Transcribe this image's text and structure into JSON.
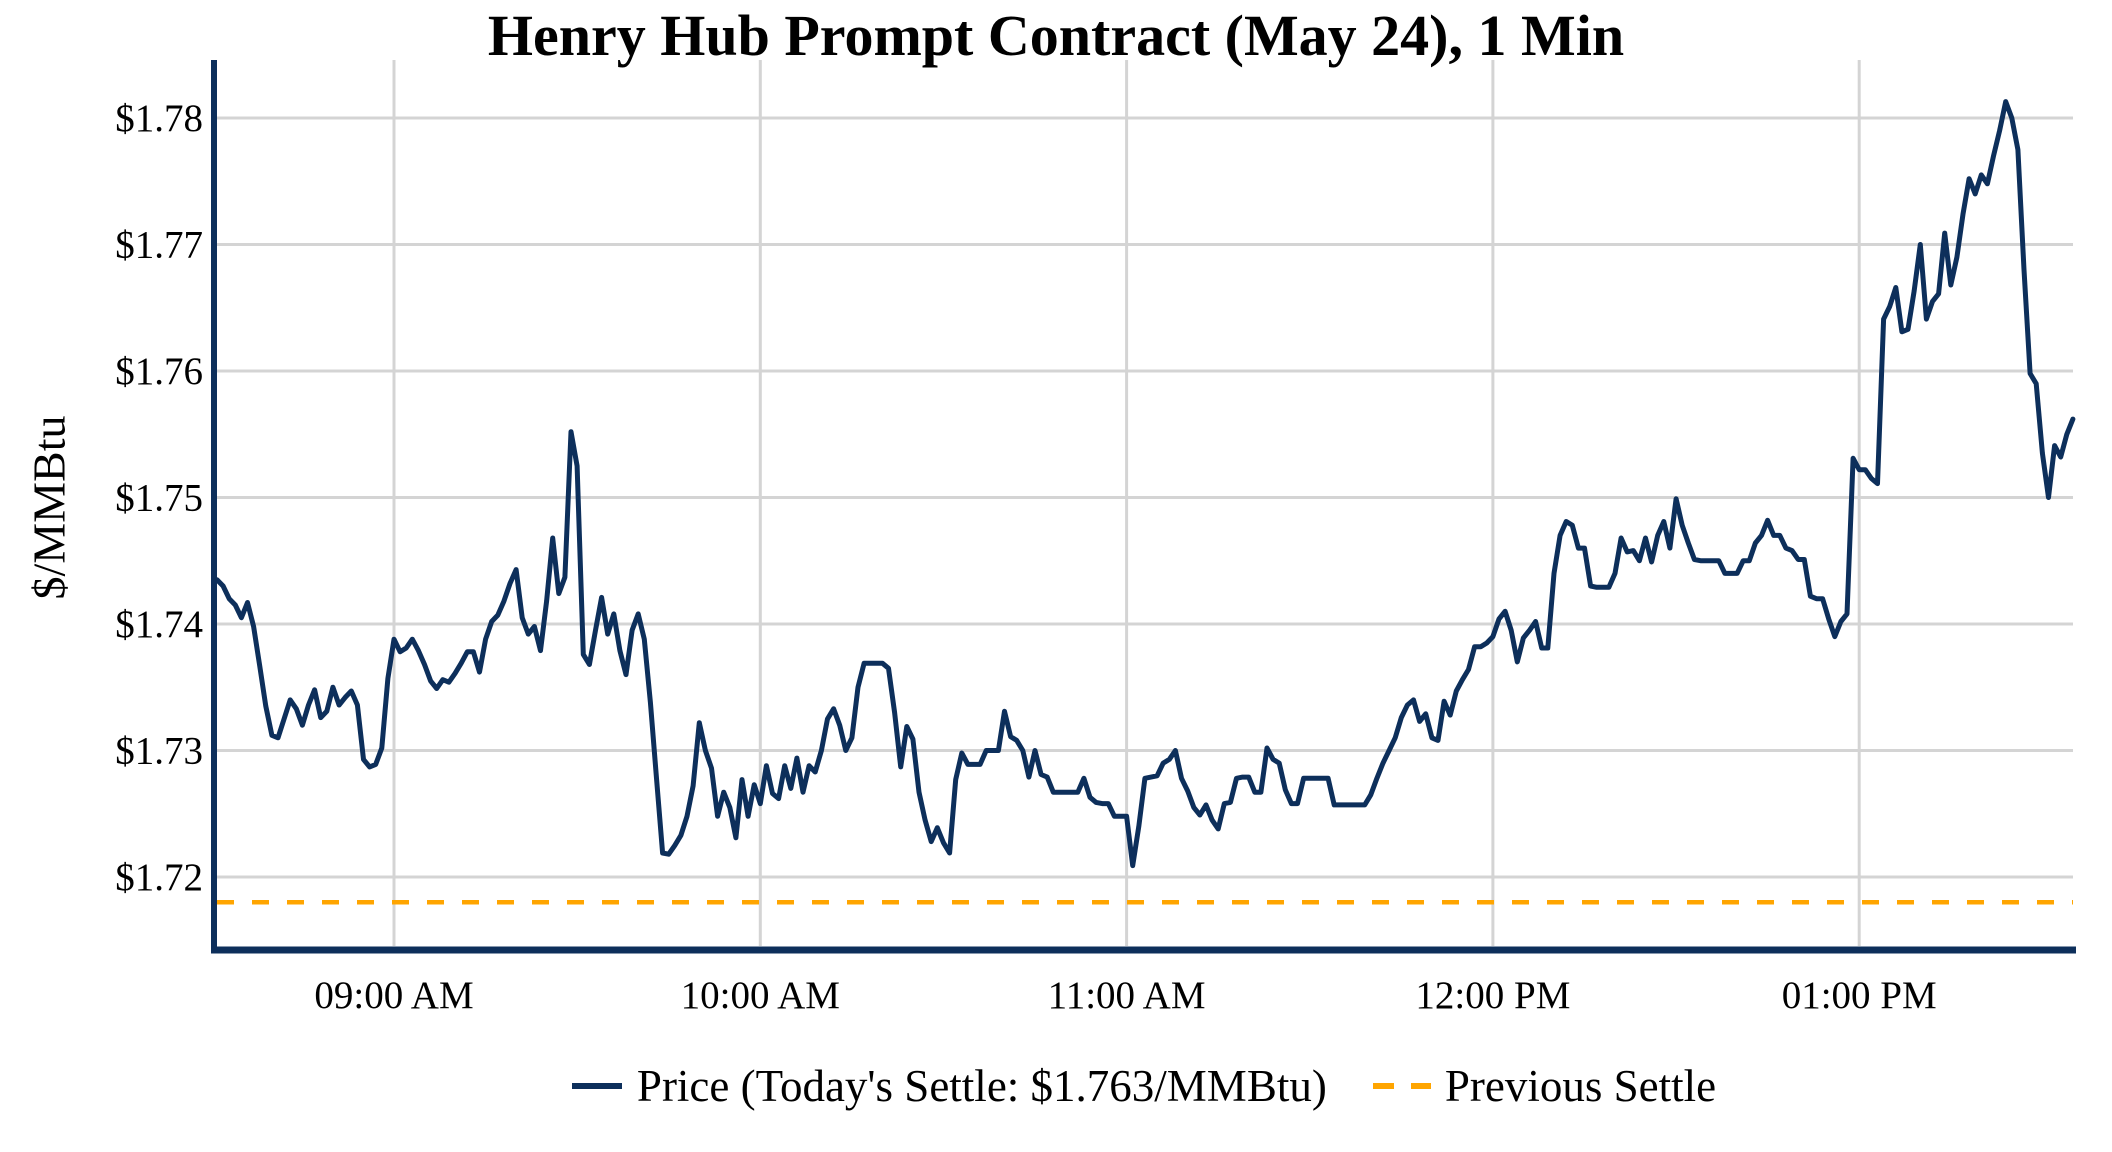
{
  "chart_data": {
    "type": "line",
    "title": "Henry Hub Prompt Contract (May 24), 1 Min",
    "xlabel": "",
    "ylabel": "$/MMBtu",
    "grid": true,
    "legend_position": "bottom",
    "ylim": [
      1.7143,
      1.7846
    ],
    "xlim_minutes": [
      510.5,
      815.2
    ],
    "y_ticks": [
      {
        "label": "$1.72",
        "value": 1.72
      },
      {
        "label": "$1.73",
        "value": 1.73
      },
      {
        "label": "$1.74",
        "value": 1.74
      },
      {
        "label": "$1.75",
        "value": 1.75
      },
      {
        "label": "$1.76",
        "value": 1.76
      },
      {
        "label": "$1.77",
        "value": 1.77
      },
      {
        "label": "$1.78",
        "value": 1.78
      }
    ],
    "x_ticks": [
      {
        "label": "09:00 AM",
        "minute": 540
      },
      {
        "label": "10:00 AM",
        "minute": 600
      },
      {
        "label": "11:00 AM",
        "minute": 660
      },
      {
        "label": "12:00 PM",
        "minute": 720
      },
      {
        "label": "01:00 PM",
        "minute": 780
      }
    ],
    "series": [
      {
        "name": "Price (Today's Settle: $1.763/MMBtu)",
        "color": "#0d2f5b",
        "style": "solid",
        "start_minute": 511,
        "interval_minutes": 1,
        "values": [
          1.7435,
          1.743,
          1.742,
          1.7415,
          1.7405,
          1.7417,
          1.7398,
          1.7367,
          1.7335,
          1.7312,
          1.731,
          1.7325,
          1.734,
          1.7333,
          1.732,
          1.7336,
          1.7348,
          1.7326,
          1.7331,
          1.735,
          1.7336,
          1.7342,
          1.7347,
          1.7336,
          1.7293,
          1.7287,
          1.7289,
          1.7302,
          1.7357,
          1.7388,
          1.7378,
          1.7381,
          1.7388,
          1.7379,
          1.7368,
          1.7355,
          1.7349,
          1.7356,
          1.7354,
          1.7361,
          1.7369,
          1.7378,
          1.7378,
          1.7362,
          1.7388,
          1.7402,
          1.7407,
          1.7418,
          1.7432,
          1.7443,
          1.7405,
          1.7392,
          1.7398,
          1.7379,
          1.7418,
          1.7468,
          1.7424,
          1.7437,
          1.7552,
          1.7525,
          1.7376,
          1.7368,
          1.7395,
          1.7421,
          1.7392,
          1.7408,
          1.7379,
          1.736,
          1.7395,
          1.7408,
          1.7388,
          1.7338,
          1.7278,
          1.7219,
          1.7218,
          1.7225,
          1.7233,
          1.7248,
          1.7272,
          1.7322,
          1.73,
          1.7286,
          1.7248,
          1.7267,
          1.7255,
          1.7231,
          1.7277,
          1.7248,
          1.7273,
          1.7258,
          1.7288,
          1.7266,
          1.7262,
          1.7288,
          1.727,
          1.7294,
          1.7267,
          1.7288,
          1.7283,
          1.73,
          1.7325,
          1.7333,
          1.732,
          1.73,
          1.731,
          1.735,
          1.7369,
          1.7369,
          1.7369,
          1.7369,
          1.7365,
          1.733,
          1.7287,
          1.7319,
          1.7309,
          1.7267,
          1.7245,
          1.7228,
          1.7239,
          1.7227,
          1.7219,
          1.7277,
          1.7298,
          1.7289,
          1.7289,
          1.7289,
          1.73,
          1.73,
          1.73,
          1.7331,
          1.7311,
          1.7308,
          1.73,
          1.7279,
          1.73,
          1.7281,
          1.7279,
          1.7267,
          1.7267,
          1.7267,
          1.7267,
          1.7267,
          1.7278,
          1.7263,
          1.7259,
          1.7258,
          1.7258,
          1.7248,
          1.7248,
          1.7248,
          1.7209,
          1.724,
          1.7278,
          1.7279,
          1.728,
          1.729,
          1.7293,
          1.73,
          1.7278,
          1.7268,
          1.7255,
          1.7249,
          1.7257,
          1.7245,
          1.7238,
          1.7258,
          1.7259,
          1.7278,
          1.7279,
          1.7279,
          1.7267,
          1.7267,
          1.7302,
          1.7293,
          1.729,
          1.7269,
          1.7258,
          1.7258,
          1.7278,
          1.7278,
          1.7278,
          1.7278,
          1.7278,
          1.7257,
          1.7257,
          1.7257,
          1.7257,
          1.7257,
          1.7257,
          1.7265,
          1.7278,
          1.729,
          1.73,
          1.731,
          1.7326,
          1.7336,
          1.734,
          1.7323,
          1.7329,
          1.731,
          1.7308,
          1.7339,
          1.7328,
          1.7347,
          1.7356,
          1.7364,
          1.7382,
          1.7382,
          1.7385,
          1.739,
          1.7404,
          1.741,
          1.7395,
          1.737,
          1.7389,
          1.7395,
          1.7402,
          1.7381,
          1.7381,
          1.744,
          1.747,
          1.7481,
          1.7478,
          1.746,
          1.746,
          1.743,
          1.7429,
          1.7429,
          1.7429,
          1.744,
          1.7468,
          1.7457,
          1.7458,
          1.745,
          1.7468,
          1.7449,
          1.747,
          1.7481,
          1.746,
          1.7499,
          1.7478,
          1.7464,
          1.7451,
          1.745,
          1.745,
          1.745,
          1.745,
          1.744,
          1.744,
          1.744,
          1.745,
          1.745,
          1.7464,
          1.747,
          1.7482,
          1.747,
          1.747,
          1.746,
          1.7458,
          1.7451,
          1.7451,
          1.7422,
          1.742,
          1.742,
          1.7404,
          1.739,
          1.7402,
          1.7408,
          1.7531,
          1.7522,
          1.7522,
          1.7515,
          1.7511,
          1.7641,
          1.7651,
          1.7666,
          1.7631,
          1.7633,
          1.7663,
          1.77,
          1.7641,
          1.7655,
          1.7661,
          1.7709,
          1.7668,
          1.769,
          1.7724,
          1.7752,
          1.774,
          1.7755,
          1.7748,
          1.777,
          1.779,
          1.7813,
          1.78,
          1.7775,
          1.768,
          1.7598,
          1.759,
          1.7535,
          1.75,
          1.7541,
          1.7532,
          1.755,
          1.7562
        ]
      },
      {
        "name": "Previous Settle",
        "color": "#FFA500",
        "style": "dashed",
        "value": 1.718
      }
    ]
  }
}
